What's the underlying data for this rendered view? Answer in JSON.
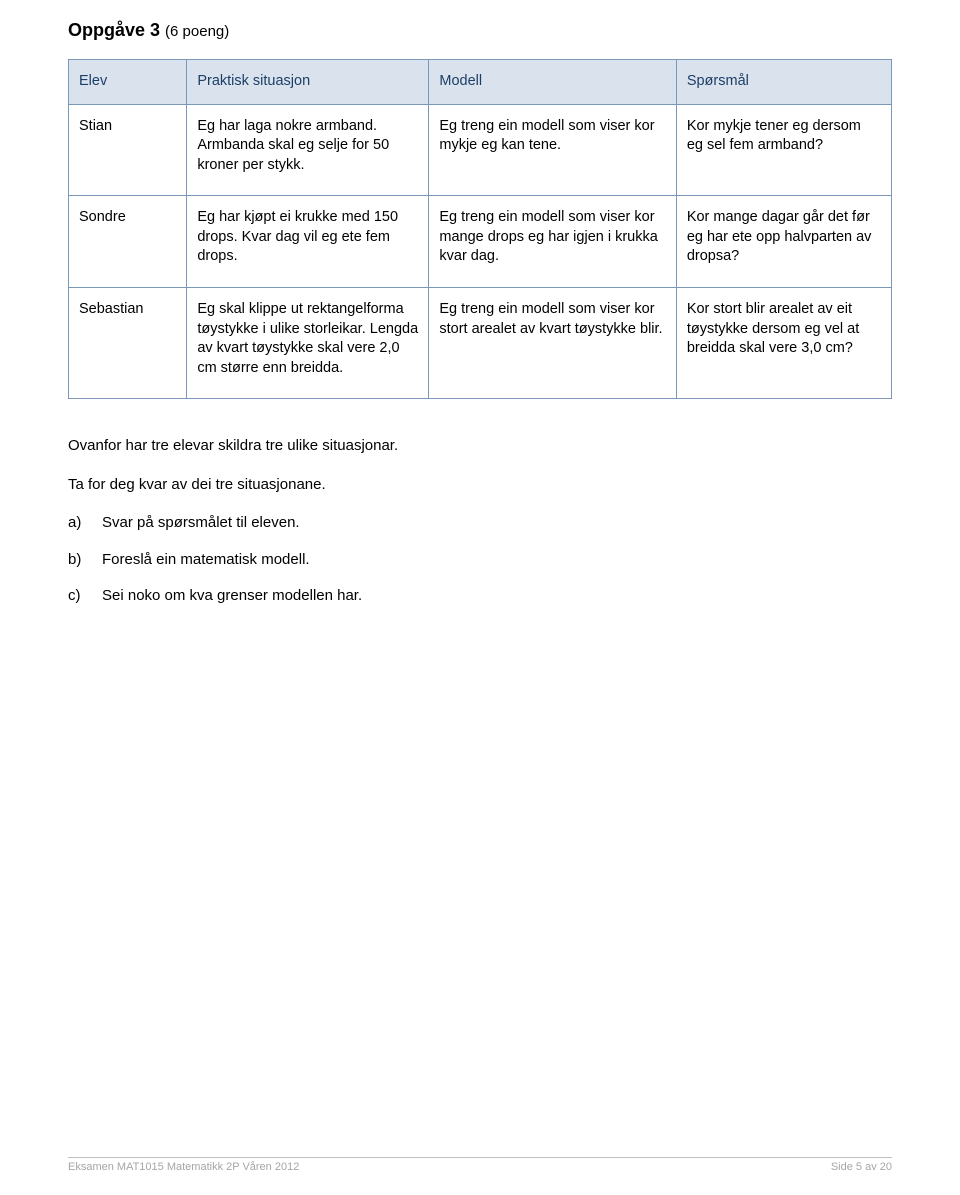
{
  "task": {
    "title_prefix": "Oppgåve 3",
    "points": "(6 poeng)"
  },
  "table": {
    "header_bg": "#dae3ed",
    "border_color": "#7b98b8",
    "header_text_color": "#1c3e66",
    "columns": [
      "Elev",
      "Praktisk situasjon",
      "Modell",
      "Spørsmål"
    ],
    "rows": [
      {
        "elev": "Stian",
        "situasjon": "Eg har laga nokre armband. Armbanda skal eg selje for 50 kroner per stykk.",
        "modell": "Eg treng ein modell som viser kor mykje eg kan tene.",
        "spm": "Kor mykje tener eg dersom eg sel fem armband?"
      },
      {
        "elev": "Sondre",
        "situasjon": "Eg har kjøpt ei krukke med 150 drops. Kvar dag vil eg ete fem drops.",
        "modell": "Eg treng ein modell som viser kor mange drops eg har igjen i krukka kvar dag.",
        "spm": "Kor mange dagar går det før eg har ete opp halvparten av dropsa?"
      },
      {
        "elev": "Sebastian",
        "situasjon": "Eg skal klippe ut rektangelforma tøystykke i ulike storleikar. Lengda av kvart tøystykke skal vere 2,0 cm større enn breidda.",
        "modell": "Eg treng ein modell som viser kor stort arealet av kvart tøystykke blir.",
        "spm": "Kor stort blir arealet av eit tøystykke dersom eg vel at breidda skal vere 3,0 cm?"
      }
    ]
  },
  "body": {
    "p1": "Ovanfor har tre elevar skildra tre ulike situasjonar.",
    "p2": "Ta for deg kvar av dei tre situasjonane.",
    "items": [
      {
        "marker": "a)",
        "text": "Svar på spørsmålet til eleven."
      },
      {
        "marker": "b)",
        "text": "Foreslå ein matematisk modell."
      },
      {
        "marker": "c)",
        "text": "Sei noko om kva grenser modellen har."
      }
    ]
  },
  "footer": {
    "left": "Eksamen MAT1015 Matematikk 2P Våren 2012",
    "right": "Side 5 av 20"
  }
}
